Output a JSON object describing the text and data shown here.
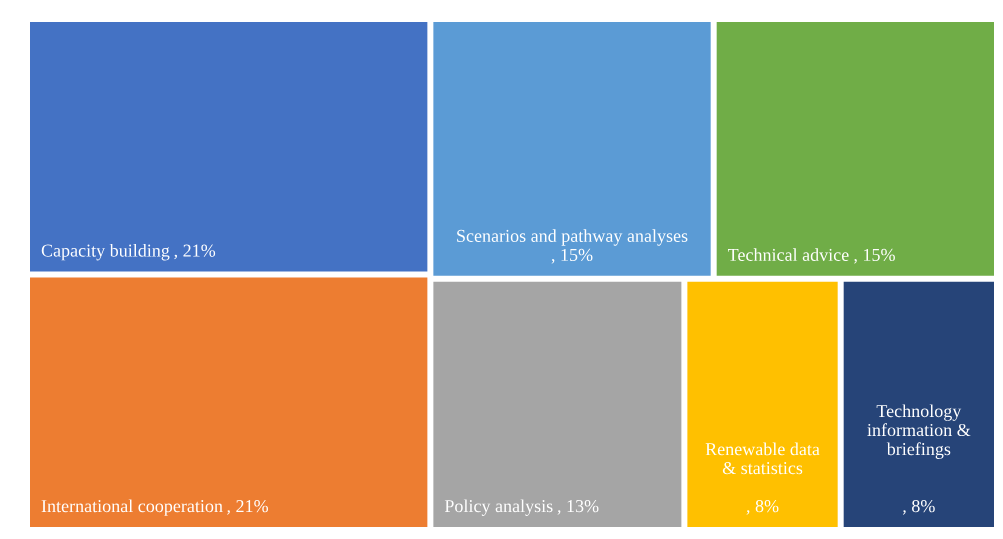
{
  "chart_data": {
    "type": "other",
    "categories": [
      "Capacity building",
      "International cooperation",
      "Scenarios and pathway analyses",
      "Technical advice",
      "Policy analysis",
      "Renewable data & statistics",
      "Technology information & briefings"
    ],
    "values": [
      21,
      21,
      15,
      15,
      13,
      8,
      8
    ],
    "value_labels": [
      ", 21%",
      ", 21%",
      ", 15%",
      ", 15%",
      ", 13%",
      ", 8%",
      ", 8%"
    ],
    "colors": [
      "#4472c4",
      "#ed7d31",
      "#5b9bd5",
      "#70ad47",
      "#a5a5a5",
      "#ffc000",
      "#264478"
    ]
  }
}
